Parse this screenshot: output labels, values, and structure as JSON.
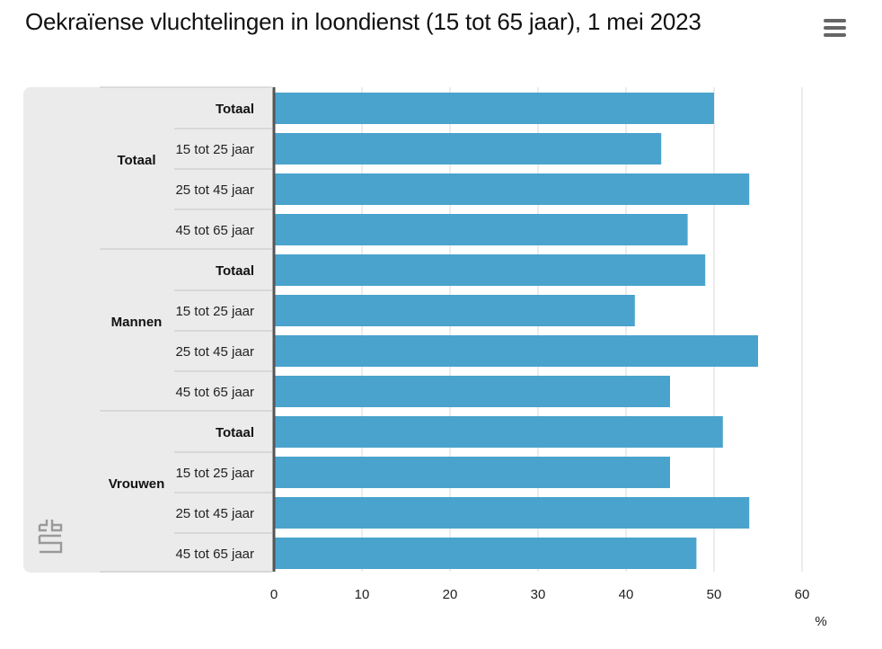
{
  "title": "Oekraïense vluchtelingen in loondienst (15 tot 65 jaar), 1 mei 2023",
  "menu_icon": "hamburger-menu-icon",
  "logo_icon": "cbs-logo-icon",
  "colors": {
    "bar": "#4aa3cc",
    "panel": "#ebebeb",
    "grid": "#d9d9d9",
    "axis": "#555555"
  },
  "chart_data": {
    "type": "bar",
    "orientation": "horizontal",
    "title": "Oekraïense vluchtelingen in loondienst (15 tot 65 jaar), 1 mei 2023",
    "unit": "%",
    "xlim": [
      0,
      60
    ],
    "xticks": [
      0,
      10,
      20,
      30,
      40,
      50,
      60
    ],
    "grid": true,
    "groups": [
      {
        "name": "Totaal",
        "categories": [
          "Totaal",
          "15 tot 25 jaar",
          "25 tot 45 jaar",
          "45 tot 65 jaar"
        ],
        "values": [
          50,
          44,
          54,
          47
        ]
      },
      {
        "name": "Mannen",
        "categories": [
          "Totaal",
          "15 tot 25 jaar",
          "25 tot 45 jaar",
          "45 tot 65 jaar"
        ],
        "values": [
          49,
          41,
          55,
          45
        ]
      },
      {
        "name": "Vrouwen",
        "categories": [
          "Totaal",
          "15 tot 25 jaar",
          "25 tot 45 jaar",
          "45 tot 65 jaar"
        ],
        "values": [
          51,
          45,
          54,
          48
        ]
      }
    ]
  }
}
